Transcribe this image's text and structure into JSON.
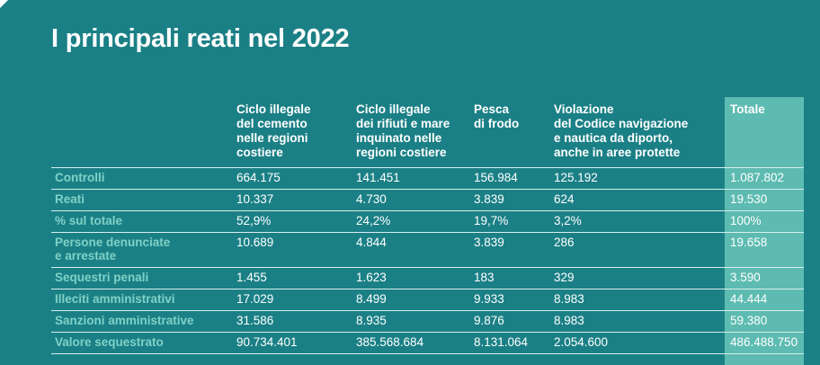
{
  "page": {
    "title": "I principali reati nel 2022"
  },
  "colors": {
    "background": "#1b8086",
    "totale_column": "#5dbbb1",
    "row_label": "#7fd1c6",
    "text": "#ffffff"
  },
  "table": {
    "headers": {
      "label": "",
      "col1": [
        "Ciclo illegale",
        "del cemento",
        "nelle regioni",
        "costiere"
      ],
      "col2": [
        "Ciclo illegale",
        "dei rifiuti e mare",
        "inquinato nelle",
        "regioni costiere"
      ],
      "col3": [
        "Pesca",
        "di frodo"
      ],
      "col4": [
        "Violazione",
        "del Codice navigazione",
        "e nautica da diporto,",
        "anche in aree protette"
      ],
      "total": "Totale"
    },
    "rows": [
      {
        "label": "Controlli",
        "c1": "664.175",
        "c2": "141.451",
        "c3": "156.984",
        "c4": "125.192",
        "total": "1.087.802"
      },
      {
        "label": "Reati",
        "c1": "10.337",
        "c2": "4.730",
        "c3": "3.839",
        "c4": "624",
        "total": "19.530"
      },
      {
        "label": "% sul totale",
        "c1": "52,9%",
        "c2": "24,2%",
        "c3": "19,7%",
        "c4": "3,2%",
        "total": "100%"
      },
      {
        "label_lines": [
          "Persone denunciate",
          "e arrestate"
        ],
        "c1": "10.689",
        "c2": "4.844",
        "c3": "3.839",
        "c4": "286",
        "total": "19.658"
      },
      {
        "label": "Sequestri penali",
        "c1": "1.455",
        "c2": "1.623",
        "c3": "183",
        "c4": "329",
        "total": "3.590"
      },
      {
        "label": "Illeciti amministrativi",
        "c1": "17.029",
        "c2": "8.499",
        "c3": "9.933",
        "c4": "8.983",
        "total": "44.444"
      },
      {
        "label": "Sanzioni amministrative",
        "c1": "31.586",
        "c2": "8.935",
        "c3": "9.876",
        "c4": "8.983",
        "total": "59.380"
      },
      {
        "label": "Valore sequestrato",
        "c1": "90.734.401",
        "c2": "385.568.684",
        "c3": "8.131.064",
        "c4": "2.054.600",
        "total": "486.488.750"
      }
    ]
  }
}
